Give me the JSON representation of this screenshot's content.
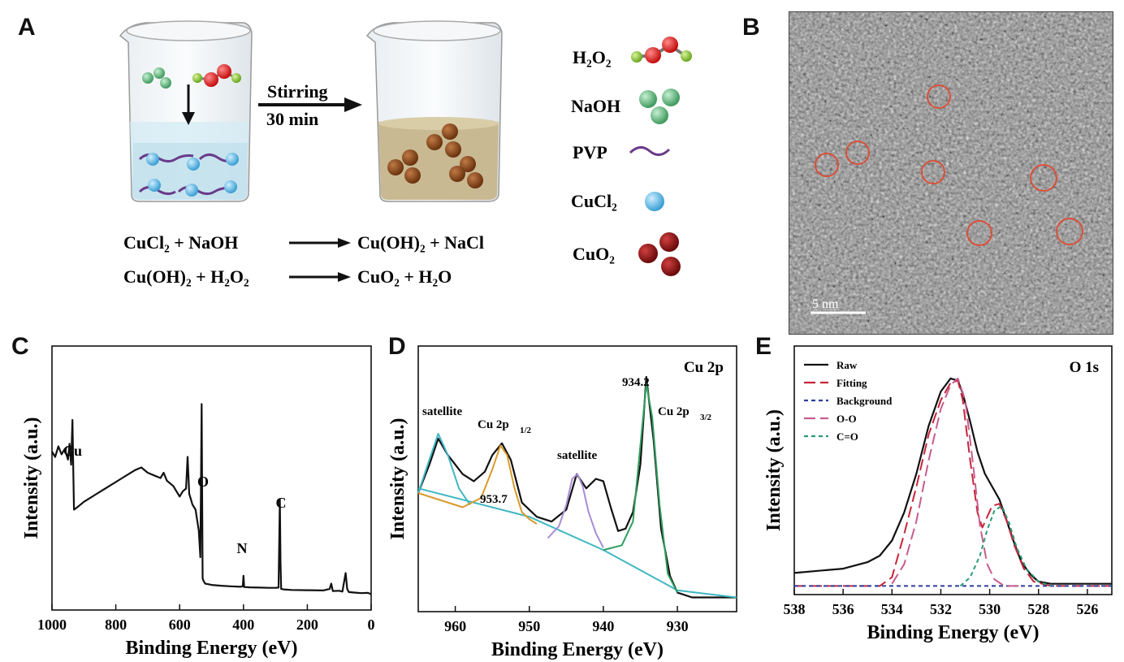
{
  "panel_letters": {
    "a": "A",
    "b": "B",
    "c": "C",
    "d": "D",
    "e": "E"
  },
  "panel_a": {
    "arrow_label_1": "Stirring",
    "arrow_label_2": "30 min",
    "legend": [
      {
        "label": "H₂O₂",
        "color": "#d41a1a"
      },
      {
        "label": "NaOH",
        "color": "#5fb67c"
      },
      {
        "label": "PVP",
        "color": "#7a3c8a"
      },
      {
        "label": "CuCl₂",
        "color": "#5bb3dc"
      },
      {
        "label": "CuO₂",
        "color": "#8a1414"
      }
    ],
    "reactions": [
      {
        "left": "CuCl₂ + NaOH",
        "right": "Cu(OH)₂ + NaCl"
      },
      {
        "left": "Cu(OH)₂ + H₂O₂",
        "right": "CuO₂ + H₂O"
      }
    ]
  },
  "panel_b": {
    "scale_bar": "5 nm"
  },
  "chart_data": [
    {
      "panel": "C",
      "type": "line",
      "title": "",
      "xlabel": "Binding Energy (eV)",
      "ylabel": "Intensity (a.u.)",
      "xlim": [
        1000,
        0
      ],
      "xticks": [
        1000,
        800,
        600,
        400,
        200,
        0
      ],
      "annotations": [
        {
          "text": "Cu",
          "x": 935
        },
        {
          "text": "O",
          "x": 531
        },
        {
          "text": "N",
          "x": 400
        },
        {
          "text": "C",
          "x": 285
        }
      ],
      "series": [
        {
          "name": "survey",
          "x": [
            1000,
            990,
            980,
            970,
            960,
            950,
            945,
            940,
            936,
            933,
            931,
            920,
            900,
            860,
            820,
            780,
            740,
            720,
            700,
            680,
            660,
            650,
            640,
            620,
            600,
            590,
            580,
            575,
            570,
            565,
            560,
            550,
            540,
            535,
            531,
            528,
            525,
            520,
            500,
            470,
            440,
            410,
            402,
            400,
            398,
            380,
            350,
            320,
            300,
            290,
            286,
            284,
            282,
            275,
            250,
            200,
            150,
            130,
            125,
            120,
            100,
            90,
            80,
            75,
            70,
            50,
            30,
            10,
            0
          ],
          "y": [
            60,
            58,
            62,
            59,
            61,
            57,
            63,
            55,
            72,
            52,
            38,
            39,
            41,
            44,
            47,
            50,
            53,
            54,
            52,
            51,
            50,
            52,
            49,
            47,
            43,
            45,
            46,
            58,
            44,
            42,
            40,
            38,
            30,
            20,
            78,
            12,
            11,
            10,
            9.5,
            9.2,
            9,
            8.8,
            9,
            13,
            8.7,
            8.6,
            8.5,
            8.4,
            8.4,
            8.5,
            42,
            18,
            8,
            7.8,
            7.6,
            7.5,
            7.4,
            8,
            10,
            7.2,
            7.3,
            7,
            14,
            8,
            6.8,
            6.6,
            6.4,
            6.5,
            6
          ]
        }
      ]
    },
    {
      "panel": "D",
      "type": "line",
      "title": "Cu 2p",
      "xlabel": "Binding Energy (eV)",
      "ylabel": "Intensity (a.u.)",
      "xlim": [
        965,
        922
      ],
      "xticks": [
        960,
        950,
        940,
        930
      ],
      "annotations": [
        {
          "text": "satellite",
          "x": 962.2
        },
        {
          "text": "Cu 2p",
          "sub": "1/2",
          "x": 953.7
        },
        {
          "text": "953.7",
          "x": 953.7
        },
        {
          "text": "satellite",
          "x": 943.5
        },
        {
          "text": "934.2",
          "x": 934.2
        },
        {
          "text": "Cu 2p",
          "sub": "3/2",
          "x": 934.2
        }
      ],
      "series": [
        {
          "name": "raw",
          "color": "#111",
          "x": [
            965,
            963.5,
            962.3,
            961,
            959,
            957.5,
            956,
            955,
            953.7,
            952.5,
            951,
            949,
            947,
            945,
            943.6,
            942.3,
            941,
            940,
            939,
            938,
            937,
            936,
            935,
            934.2,
            933.2,
            932.2,
            931,
            930,
            928,
            926,
            924,
            922
          ],
          "y": [
            0.5,
            0.62,
            0.73,
            0.66,
            0.58,
            0.55,
            0.59,
            0.66,
            0.71,
            0.64,
            0.46,
            0.4,
            0.38,
            0.43,
            0.58,
            0.52,
            0.56,
            0.55,
            0.44,
            0.34,
            0.35,
            0.42,
            0.62,
            0.99,
            0.72,
            0.35,
            0.15,
            0.08,
            0.06,
            0.06,
            0.06,
            0.06
          ]
        },
        {
          "name": "background",
          "color": "#3fb7c2",
          "x": [
            965,
            950,
            940,
            930,
            922
          ],
          "y": [
            0.52,
            0.4,
            0.26,
            0.09,
            0.06
          ]
        },
        {
          "name": "satellite fit",
          "color": "#3fb7c2",
          "x": [
            965,
            963.5,
            962.3,
            961,
            959.5,
            958
          ],
          "y": [
            0.5,
            0.64,
            0.75,
            0.66,
            0.52,
            0.45
          ]
        },
        {
          "name": "Cu 2p1/2 fit",
          "color": "#d99a2b",
          "x": [
            965,
            959,
            956.5,
            955,
            953.9,
            953,
            952,
            951,
            950,
            949
          ],
          "y": [
            0.5,
            0.44,
            0.48,
            0.6,
            0.7,
            0.66,
            0.52,
            0.42,
            0.39,
            0.37
          ]
        },
        {
          "name": "satellite 2 fit",
          "color": "#a88cd6",
          "x": [
            947.5,
            946,
            945,
            944.2,
            943.5,
            942.8,
            942,
            941,
            940
          ],
          "y": [
            0.31,
            0.36,
            0.45,
            0.56,
            0.58,
            0.53,
            0.42,
            0.33,
            0.27
          ]
        },
        {
          "name": "Cu 2p3/2 fit",
          "color": "#2f9e60",
          "x": [
            940,
            937.5,
            936,
            935,
            934.2,
            933.4,
            932.4,
            931.3,
            930
          ],
          "y": [
            0.26,
            0.28,
            0.38,
            0.7,
            0.96,
            0.82,
            0.45,
            0.16,
            0.08
          ]
        }
      ]
    },
    {
      "panel": "E",
      "type": "line",
      "title": "O 1s",
      "xlabel": "Binding Energy (eV)",
      "ylabel": "Intensity (a.u.)",
      "xlim": [
        538,
        525
      ],
      "xticks": [
        538,
        536,
        534,
        532,
        530,
        528,
        526
      ],
      "legend": [
        "Raw",
        "Fitting",
        "Background",
        "O-O",
        "C=O"
      ],
      "series": [
        {
          "name": "Raw",
          "color": "#111",
          "dash": "solid",
          "x": [
            538,
            537,
            536,
            535,
            534.5,
            534,
            533.5,
            533,
            532.5,
            532,
            531.6,
            531.3,
            531.1,
            530.8,
            530.5,
            530.2,
            529.9,
            529.6,
            529.3,
            529,
            528.7,
            528.3,
            528,
            527.5,
            527,
            526,
            525
          ],
          "y": [
            0.1,
            0.11,
            0.12,
            0.15,
            0.18,
            0.25,
            0.38,
            0.56,
            0.78,
            0.94,
            1.0,
            0.99,
            0.93,
            0.8,
            0.66,
            0.56,
            0.5,
            0.44,
            0.34,
            0.24,
            0.15,
            0.09,
            0.06,
            0.05,
            0.05,
            0.05,
            0.05
          ]
        },
        {
          "name": "Fitting",
          "color": "#c7253a",
          "dash": "long-dash",
          "x": [
            538,
            536,
            534.5,
            534,
            533.5,
            533,
            532.5,
            532,
            531.6,
            531.3,
            531.1,
            530.8,
            530.5,
            530.3,
            530.1,
            529.9,
            529.6,
            529.3,
            529,
            528.6,
            528.2,
            527.5,
            525
          ],
          "y": [
            0.04,
            0.04,
            0.04,
            0.08,
            0.28,
            0.5,
            0.74,
            0.9,
            0.98,
            0.99,
            0.9,
            0.62,
            0.38,
            0.31,
            0.36,
            0.41,
            0.42,
            0.34,
            0.23,
            0.12,
            0.06,
            0.04,
            0.04
          ]
        },
        {
          "name": "Background",
          "color": "#2b3f9b",
          "dash": "dash",
          "x": [
            538,
            533,
            530,
            528,
            525
          ],
          "y": [
            0.04,
            0.04,
            0.04,
            0.04,
            0.04
          ]
        },
        {
          "name": "O-O",
          "color": "#c75c8e",
          "dash": "long-dash",
          "x": [
            534,
            533.5,
            533,
            532.5,
            532,
            531.6,
            531.3,
            531,
            530.7,
            530.4,
            530.1,
            529.8,
            529.4,
            528.8
          ],
          "y": [
            0.05,
            0.14,
            0.34,
            0.62,
            0.86,
            0.97,
            1.0,
            0.9,
            0.62,
            0.32,
            0.14,
            0.07,
            0.04,
            0.04
          ]
        },
        {
          "name": "C=O",
          "color": "#2a9a78",
          "dash": "dash",
          "x": [
            531.2,
            530.8,
            530.4,
            530.1,
            529.8,
            529.5,
            529.2,
            528.9,
            528.5,
            528,
            527.5
          ],
          "y": [
            0.04,
            0.08,
            0.18,
            0.3,
            0.39,
            0.41,
            0.33,
            0.22,
            0.12,
            0.06,
            0.04
          ]
        }
      ]
    }
  ]
}
